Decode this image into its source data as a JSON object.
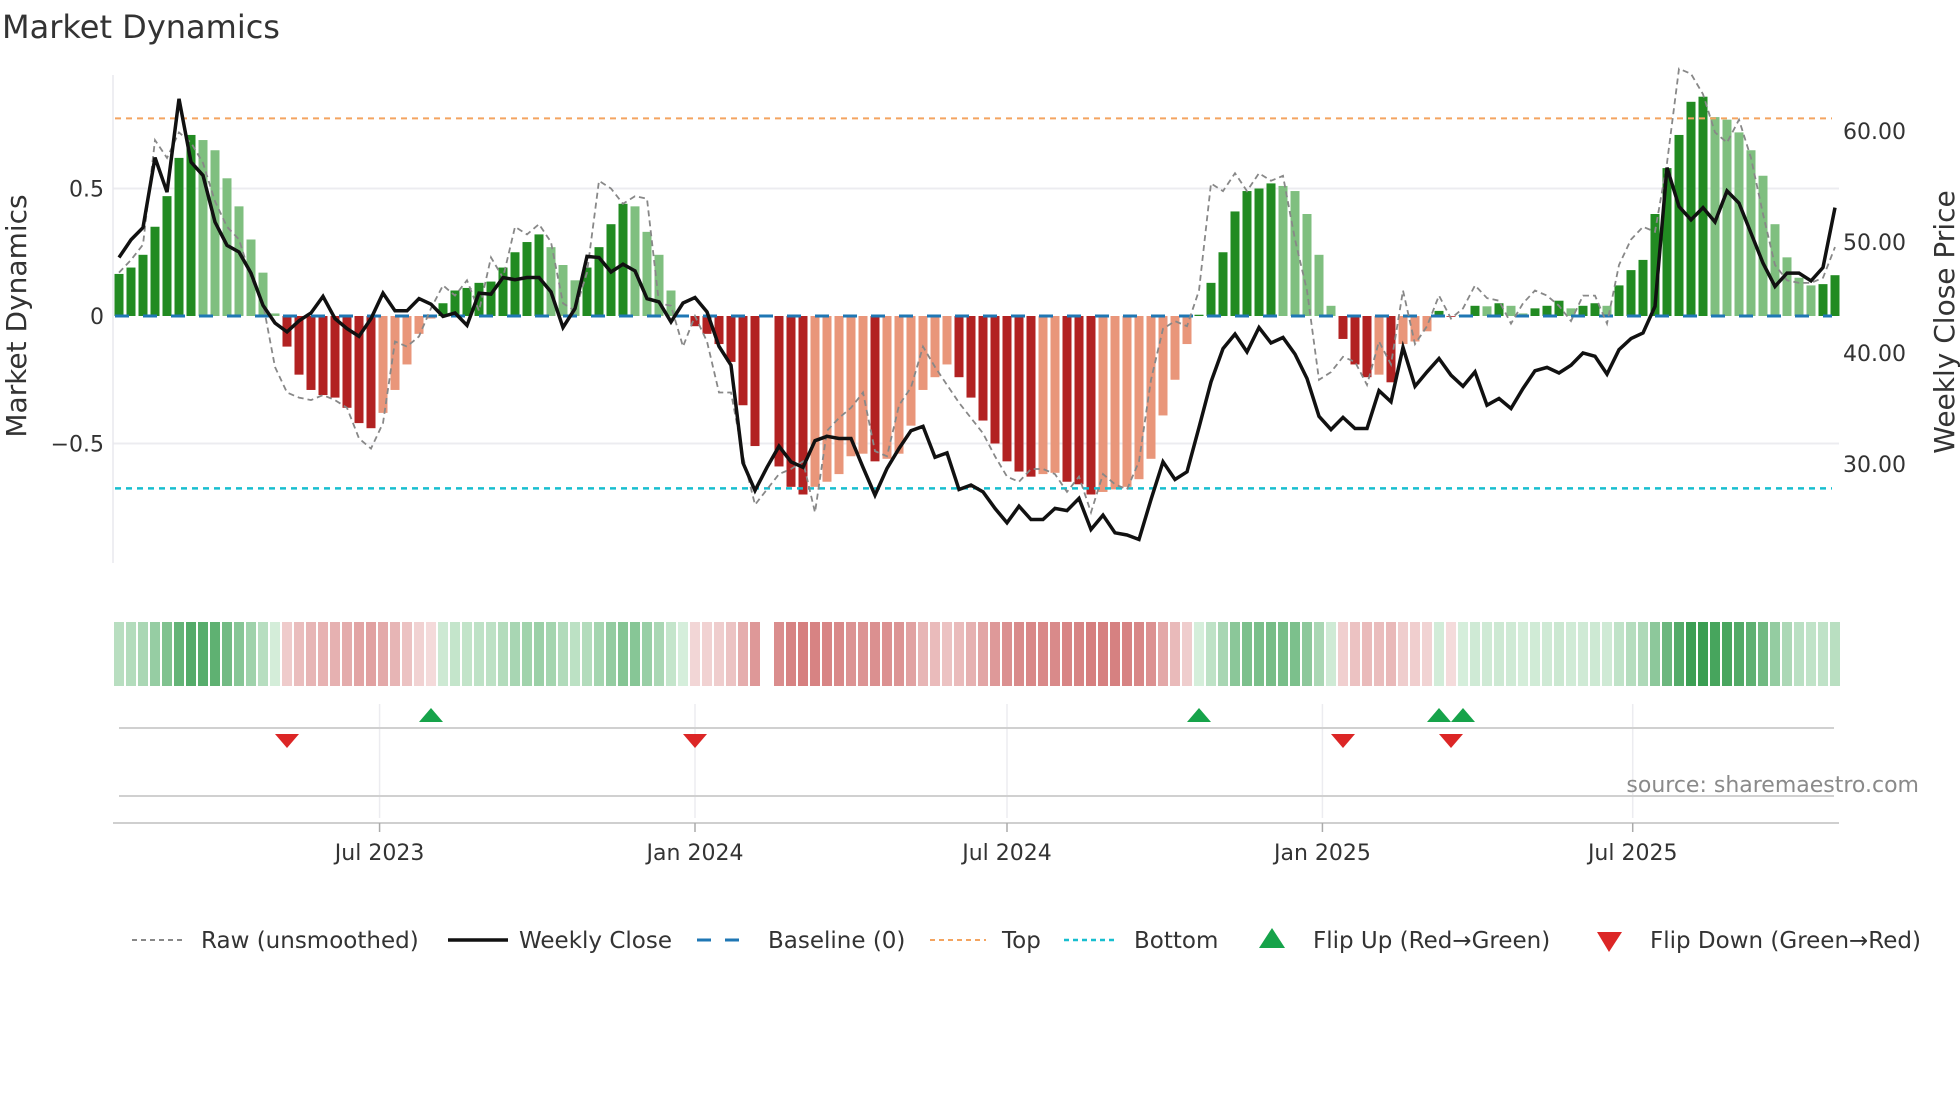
{
  "title": "Market Dynamics",
  "source": "source: sharemaestro.com",
  "chart_data": {
    "type": "bar",
    "title": "Market Dynamics",
    "ylabel": "Market Dynamics",
    "ylabel_right": "Weekly Close Price",
    "x_start": "2023-01-30",
    "frequency": "weekly",
    "ylim": [
      -0.969,
      0.945
    ],
    "ylim_right": [
      21.1,
      65.0
    ],
    "grid": true,
    "legend_position": "bottom",
    "y_ticks": [
      {
        "value": 0.5,
        "label": "0.5"
      },
      {
        "value": 0,
        "label": "0"
      },
      {
        "value": -0.5,
        "label": "−0.5"
      }
    ],
    "y_ticks_right": [
      {
        "value": 60,
        "label": "60.00"
      },
      {
        "value": 50,
        "label": "50.00"
      },
      {
        "value": 40,
        "label": "40.00"
      },
      {
        "value": 30,
        "label": "30.00"
      }
    ],
    "x_ticks": [
      {
        "date": "2023-07-01",
        "label": "Jul 2023"
      },
      {
        "date": "2024-01-01",
        "label": "Jan 2024"
      },
      {
        "date": "2024-07-01",
        "label": "Jul 2024"
      },
      {
        "date": "2025-01-01",
        "label": "Jan 2025"
      },
      {
        "date": "2025-07-01",
        "label": "Jul 2025"
      }
    ],
    "reference_lines": {
      "baseline": 0,
      "top": 0.775,
      "bottom": -0.676
    },
    "colors": {
      "up_strong": "#228b22",
      "up_weak": "#7fbf7f",
      "down_strong": "#b22222",
      "down_weak": "#e9967a",
      "baseline": "#1f77b4",
      "top": "#f4a460",
      "bottom": "#17becf",
      "raw": "#888888",
      "close": "#111111",
      "flip_up": "#16a34a",
      "flip_down": "#dc2626"
    },
    "dynamics": [
      0.165,
      0.19,
      0.24,
      0.35,
      0.47,
      0.62,
      0.71,
      0.69,
      0.65,
      0.54,
      0.43,
      0.3,
      0.17,
      0.01,
      -0.12,
      -0.23,
      -0.29,
      -0.31,
      -0.32,
      -0.36,
      -0.42,
      -0.44,
      -0.38,
      -0.29,
      -0.19,
      -0.07,
      -0.01,
      0.05,
      0.1,
      0.11,
      0.13,
      0.135,
      0.19,
      0.25,
      0.29,
      0.32,
      0.27,
      0.2,
      0.14,
      0.19,
      0.27,
      0.36,
      0.44,
      0.43,
      0.33,
      0.24,
      0.1,
      0.003,
      -0.04,
      -0.07,
      -0.11,
      -0.18,
      -0.35,
      -0.51,
      null,
      -0.59,
      -0.67,
      -0.7,
      -0.67,
      -0.65,
      -0.62,
      -0.55,
      -0.54,
      -0.57,
      -0.56,
      -0.54,
      -0.43,
      -0.29,
      -0.24,
      -0.19,
      -0.24,
      -0.32,
      -0.41,
      -0.5,
      -0.57,
      -0.61,
      -0.63,
      -0.62,
      -0.615,
      -0.65,
      -0.66,
      -0.7,
      -0.69,
      -0.68,
      -0.67,
      -0.64,
      -0.56,
      -0.39,
      -0.25,
      -0.11,
      0.005,
      0.13,
      0.25,
      0.41,
      0.49,
      0.5,
      0.52,
      0.51,
      0.49,
      0.4,
      0.24,
      0.04,
      -0.09,
      -0.19,
      -0.24,
      -0.23,
      -0.26,
      -0.11,
      -0.1,
      -0.06,
      0.02,
      -0.003,
      0.003,
      0.04,
      0.038,
      0.05,
      0.04,
      0.01,
      0.03,
      0.04,
      0.06,
      0.03,
      0.04,
      0.05,
      0.04,
      0.12,
      0.18,
      0.22,
      0.4,
      0.58,
      0.71,
      0.84,
      0.86,
      0.78,
      0.77,
      0.72,
      0.65,
      0.55,
      0.36,
      0.23,
      0.15,
      0.12,
      0.125,
      0.16
    ],
    "raw": [
      0.17,
      0.22,
      0.28,
      0.69,
      0.62,
      0.72,
      0.68,
      0.6,
      0.45,
      0.35,
      0.3,
      0.15,
      0.05,
      -0.2,
      -0.3,
      -0.32,
      -0.33,
      -0.31,
      -0.33,
      -0.36,
      -0.48,
      -0.52,
      -0.42,
      -0.1,
      -0.12,
      -0.08,
      0.03,
      0.12,
      0.08,
      0.14,
      0.02,
      0.23,
      0.15,
      0.35,
      0.32,
      0.36,
      0.29,
      0.05,
      0.02,
      0.17,
      0.53,
      0.5,
      0.44,
      0.47,
      0.46,
      0.05,
      0.04,
      -0.12,
      0.0,
      -0.1,
      -0.3,
      -0.3,
      -0.55,
      -0.74,
      -0.68,
      -0.62,
      -0.6,
      -0.57,
      -0.77,
      -0.45,
      -0.4,
      -0.36,
      -0.3,
      -0.53,
      -0.55,
      -0.35,
      -0.28,
      -0.12,
      -0.2,
      -0.27,
      -0.34,
      -0.4,
      -0.46,
      -0.55,
      -0.63,
      -0.65,
      -0.6,
      -0.6,
      -0.62,
      -0.69,
      -0.63,
      -0.77,
      -0.62,
      -0.66,
      -0.68,
      -0.57,
      -0.25,
      -0.05,
      -0.02,
      -0.04,
      0.1,
      0.52,
      0.49,
      0.56,
      0.49,
      0.56,
      0.53,
      0.55,
      0.3,
      0.1,
      -0.25,
      -0.22,
      -0.16,
      -0.18,
      -0.27,
      -0.1,
      -0.19,
      0.1,
      -0.11,
      -0.04,
      0.08,
      -0.01,
      0.03,
      0.12,
      0.07,
      0.06,
      -0.03,
      0.05,
      0.1,
      0.08,
      0.04,
      -0.02,
      0.08,
      0.08,
      -0.03,
      0.2,
      0.3,
      0.35,
      0.33,
      0.6,
      0.97,
      0.95,
      0.87,
      0.72,
      0.68,
      0.77,
      0.62,
      0.4,
      0.2,
      0.14,
      0.13,
      0.13,
      0.15,
      0.27
    ],
    "weekly_close": [
      48.6,
      50.2,
      51.3,
      57.6,
      54.5,
      62.9,
      57.2,
      56.0,
      51.8,
      49.7,
      49.1,
      47.2,
      44.3,
      42.7,
      41.9,
      42.9,
      43.6,
      45.1,
      43.1,
      42.2,
      41.5,
      43.1,
      45.4,
      43.8,
      43.8,
      44.9,
      44.4,
      43.3,
      43.6,
      42.5,
      45.4,
      45.3,
      46.8,
      46.6,
      46.8,
      46.8,
      45.5,
      42.3,
      44.0,
      48.7,
      48.6,
      47.3,
      48.0,
      47.4,
      44.9,
      44.6,
      42.8,
      44.5,
      45.0,
      43.7,
      40.6,
      38.9,
      30.1,
      27.6,
      29.7,
      31.6,
      30.2,
      29.7,
      32.1,
      32.5,
      32.3,
      32.3,
      29.7,
      27.2,
      29.6,
      31.4,
      33.0,
      33.4,
      30.6,
      31.0,
      27.7,
      28.1,
      27.5,
      26.0,
      24.7,
      26.2,
      25.0,
      25.0,
      26.0,
      25.8,
      26.9,
      24.1,
      25.4,
      23.8,
      23.6,
      23.2,
      26.8,
      30.2,
      28.6,
      29.3,
      33.3,
      37.4,
      40.4,
      41.7,
      40.1,
      42.3,
      40.9,
      41.4,
      39.9,
      37.7,
      34.3,
      33.1,
      34.2,
      33.2,
      33.2,
      36.6,
      35.6,
      40.5,
      37.0,
      38.3,
      39.5,
      38.0,
      37.0,
      38.3,
      35.3,
      35.9,
      35.0,
      36.8,
      38.4,
      38.7,
      38.2,
      38.9,
      40.0,
      39.7,
      38.1,
      40.3,
      41.3,
      41.8,
      44.2,
      56.7,
      53.2,
      52.0,
      53.1,
      51.8,
      54.6,
      53.5,
      50.8,
      48.1,
      46.0,
      47.2,
      47.2,
      46.5,
      47.7,
      53.1
    ],
    "flips_up": [
      "2023-07-31",
      "2024-10-21",
      "2025-03-10",
      "2025-03-24"
    ],
    "flips_down": [
      "2023-05-08",
      "2024-01-01",
      "2025-01-13",
      "2025-03-17"
    ],
    "legend": [
      {
        "key": "raw",
        "label": "Raw (unsmoothed)"
      },
      {
        "key": "close",
        "label": "Weekly Close"
      },
      {
        "key": "baseline",
        "label": "Baseline (0)"
      },
      {
        "key": "top",
        "label": "Top"
      },
      {
        "key": "bottom",
        "label": "Bottom"
      },
      {
        "key": "flip_up",
        "label": "Flip Up (Red→Green)"
      },
      {
        "key": "flip_down",
        "label": "Flip Down (Green→Red)"
      }
    ]
  }
}
